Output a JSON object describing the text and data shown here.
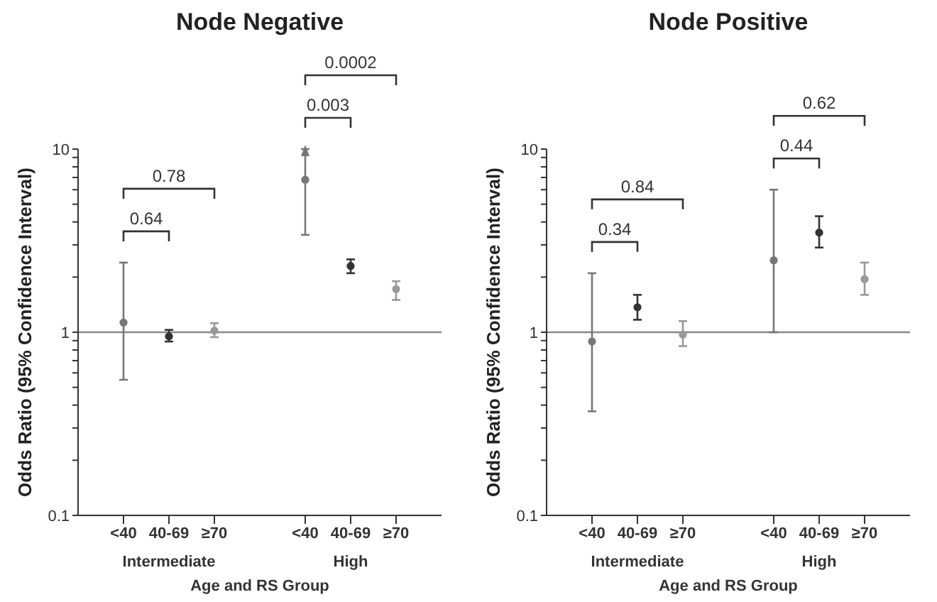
{
  "chart_data": [
    {
      "type": "scatter",
      "title": "Node Negative",
      "xlabel": "Age and RS Group",
      "ylabel": "Odds Ratio (95% Confidence Interval)",
      "categories": [
        "<40",
        "40-69",
        "≥70",
        null,
        "<40",
        "40-69",
        "≥70"
      ],
      "values": [
        1.13,
        0.95,
        1.02,
        null,
        6.8,
        2.3,
        1.72
      ],
      "errors": [
        [
          0.55,
          2.4
        ],
        [
          0.89,
          1.03
        ],
        [
          0.94,
          1.12
        ],
        null,
        [
          3.4,
          10
        ],
        [
          2.1,
          2.5
        ],
        [
          1.5,
          1.9
        ]
      ],
      "colors": [
        "#777777",
        "#333333",
        "#999999",
        null,
        "#777777",
        "#333333",
        "#999999"
      ],
      "marker": "circle",
      "log": "y",
      "ylim": [
        0.1,
        10
      ],
      "yticks": [
        0.1,
        {
          "value": 0.2,
          "label": null
        },
        {
          "value": 0.3,
          "label": null
        },
        {
          "value": 0.4,
          "label": null
        },
        {
          "value": 0.5,
          "label": null
        },
        {
          "value": 0.6,
          "label": null
        },
        {
          "value": 0.7,
          "label": null
        },
        {
          "value": 0.8,
          "label": null
        },
        {
          "value": 0.9,
          "label": null
        },
        1,
        {
          "value": 2,
          "label": null
        },
        {
          "value": 3,
          "label": null
        },
        {
          "value": 4,
          "label": null
        },
        {
          "value": 5,
          "label": null
        },
        {
          "value": 6,
          "label": null
        },
        {
          "value": 7,
          "label": null
        },
        {
          "value": 8,
          "label": null
        },
        {
          "value": 9,
          "label": null
        },
        10
      ],
      "ref_lines": [
        {
          "axis": "y",
          "value": 1,
          "color": "#888888"
        }
      ],
      "annotations": [
        "0.64",
        "0.78",
        "0.003",
        "0.0002",
        "Intermediate",
        "High"
      ]
    },
    {
      "type": "scatter",
      "title": "Node Positive",
      "xlabel": "Age and RS Group",
      "ylabel": "Odds Ratio (95% Confidence Interval)",
      "categories": [
        "<40",
        "40-69",
        "≥70",
        null,
        "<40",
        "40-69",
        "≥70"
      ],
      "values": [
        0.89,
        1.37,
        0.97,
        null,
        2.47,
        3.5,
        1.95
      ],
      "errors": [
        [
          0.37,
          2.1
        ],
        [
          1.17,
          1.6
        ],
        [
          0.84,
          1.15
        ],
        null,
        [
          1.0,
          6.0
        ],
        [
          2.9,
          4.3
        ],
        [
          1.6,
          2.4
        ]
      ],
      "colors": [
        "#777777",
        "#333333",
        "#999999",
        null,
        "#777777",
        "#333333",
        "#999999"
      ],
      "marker": "circle",
      "log": "y",
      "ylim": [
        0.1,
        10
      ],
      "yticks": [
        0.1,
        {
          "value": 0.2,
          "label": null
        },
        {
          "value": 0.3,
          "label": null
        },
        {
          "value": 0.4,
          "label": null
        },
        {
          "value": 0.5,
          "label": null
        },
        {
          "value": 0.6,
          "label": null
        },
        {
          "value": 0.7,
          "label": null
        },
        {
          "value": 0.8,
          "label": null
        },
        {
          "value": 0.9,
          "label": null
        },
        1,
        {
          "value": 2,
          "label": null
        },
        {
          "value": 3,
          "label": null
        },
        {
          "value": 4,
          "label": null
        },
        {
          "value": 5,
          "label": null
        },
        {
          "value": 6,
          "label": null
        },
        {
          "value": 7,
          "label": null
        },
        {
          "value": 8,
          "label": null
        },
        {
          "value": 9,
          "label": null
        },
        10
      ],
      "ref_lines": [
        {
          "axis": "y",
          "value": 1,
          "color": "#888888"
        }
      ],
      "annotations": [
        "0.34",
        "0.84",
        "0.44",
        "0.62",
        "Intermediate",
        "High"
      ]
    }
  ]
}
